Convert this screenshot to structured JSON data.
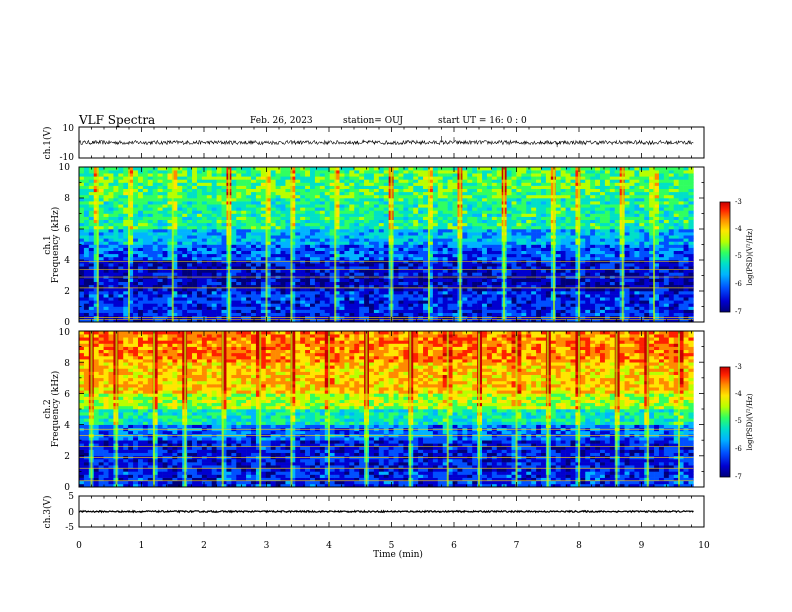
{
  "header": {
    "title": "VLF Spectra",
    "date": "Feb. 26, 2023",
    "station": "station= OUJ",
    "start": "start  UT =   16: 0  : 0"
  },
  "colors": {
    "scale": [
      "#00007a",
      "#0000d0",
      "#0050ff",
      "#00b4ff",
      "#00e0c8",
      "#30ff60",
      "#b8ff00",
      "#ffe600",
      "#ff8a00",
      "#ff2000",
      "#c80000"
    ],
    "waveform": "#000000",
    "axes": "#000000",
    "line_marker": "#ffd700"
  },
  "chart_data": [
    {
      "type": "line",
      "name": "ch1-waveform",
      "ylabel": "ch.1(V)",
      "ylim": [
        -10,
        10
      ],
      "yticks": [
        "10",
        "-10"
      ],
      "xlim": [
        0,
        10
      ],
      "baseline": 0,
      "noise_amplitude": 1.3,
      "spikes": [
        {
          "x": 5.8,
          "y": 4.2
        },
        {
          "x": 6.0,
          "y": 3.5
        },
        {
          "x": 7.65,
          "y": -3.0
        },
        {
          "x": 4.55,
          "y": 1.8
        }
      ],
      "data_end_x": 9.83
    },
    {
      "type": "heatmap",
      "name": "ch1-spectrogram",
      "ylabel": "ch.1\nFrequency  (kHz)",
      "xlim": [
        0,
        10
      ],
      "ylim": [
        0,
        10
      ],
      "yticks": [
        "0",
        "2",
        "4",
        "6",
        "8",
        "10"
      ],
      "colorbar": {
        "label": "log(PSD)(V²/Hz)",
        "range": [
          -7,
          -3
        ],
        "ticks": [
          "-3",
          "-4",
          "-5",
          "-6",
          "-7"
        ]
      },
      "data_end_x": 9.83,
      "mean_log_psd_by_band": [
        {
          "f_range": [
            0,
            0.4
          ],
          "value": -6.4
        },
        {
          "f_range": [
            0.4,
            2.0
          ],
          "value": -6.3
        },
        {
          "f_range": [
            2.0,
            3.0
          ],
          "value": -6.6
        },
        {
          "f_range": [
            3.0,
            4.0
          ],
          "value": -6.5
        },
        {
          "f_range": [
            4.0,
            5.0
          ],
          "value": -6.1
        },
        {
          "f_range": [
            5.0,
            6.0
          ],
          "value": -5.7
        },
        {
          "f_range": [
            6.0,
            8.0
          ],
          "value": -5.2
        },
        {
          "f_range": [
            8.0,
            10.0
          ],
          "value": -5.0
        }
      ],
      "line_emissions_khz": [
        0.15,
        0.3,
        2.2,
        2.9,
        3.4,
        3.9
      ],
      "bursts_min": [
        0.3,
        0.8,
        1.5,
        2.4,
        3.0,
        3.4,
        4.1,
        5.0,
        5.6,
        6.1,
        6.8,
        7.6,
        8.0,
        8.7,
        9.2
      ]
    },
    {
      "type": "heatmap",
      "name": "ch2-spectrogram",
      "ylabel": "ch.2\nFrequency  (kHz)",
      "xlim": [
        0,
        10
      ],
      "ylim": [
        0,
        10
      ],
      "yticks": [
        "0",
        "2",
        "4",
        "6",
        "8",
        "10"
      ],
      "colorbar": {
        "label": "log(PSD)(V²/Hz)",
        "range": [
          -7,
          -3
        ],
        "ticks": [
          "-3",
          "-4",
          "-5",
          "-6",
          "-7"
        ]
      },
      "data_end_x": 9.83,
      "mean_log_psd_by_band": [
        {
          "f_range": [
            0,
            1.0
          ],
          "value": -6.3
        },
        {
          "f_range": [
            1.0,
            3.0
          ],
          "value": -6.4
        },
        {
          "f_range": [
            3.0,
            4.0
          ],
          "value": -6.0
        },
        {
          "f_range": [
            4.0,
            5.0
          ],
          "value": -5.3
        },
        {
          "f_range": [
            5.0,
            6.0
          ],
          "value": -4.7
        },
        {
          "f_range": [
            6.0,
            8.0
          ],
          "value": -4.2
        },
        {
          "f_range": [
            8.0,
            10.0
          ],
          "value": -3.9
        }
      ],
      "line_emissions_khz": [
        0.4,
        1.2,
        1.9,
        2.6,
        3.3,
        3.7
      ],
      "bursts_min": [
        0.2,
        0.6,
        1.2,
        1.7,
        2.3,
        2.9,
        3.4,
        4.0,
        4.6,
        5.3,
        5.9,
        6.4,
        7.0,
        7.5,
        8.0,
        8.6,
        9.1,
        9.6
      ]
    },
    {
      "type": "line",
      "name": "ch3-waveform",
      "ylabel": "ch.3(V)",
      "ylim": [
        -5,
        5
      ],
      "yticks": [
        "5",
        "0",
        "-5"
      ],
      "xlim": [
        0,
        10
      ],
      "baseline": 0,
      "noise_amplitude": 0.25,
      "data_end_x": 9.83
    }
  ],
  "x_axis": {
    "label": "Time  (min)",
    "ticks": [
      "0",
      "1",
      "2",
      "3",
      "4",
      "5",
      "6",
      "7",
      "8",
      "9",
      "10"
    ]
  }
}
